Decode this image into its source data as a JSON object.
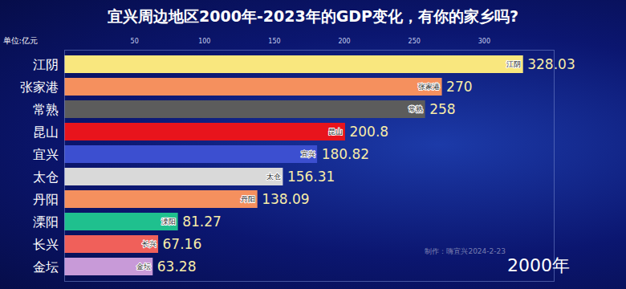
{
  "chart_data": {
    "type": "bar",
    "orientation": "horizontal",
    "title": "宜兴周边地区2000年-2023年的GDP变化，有你的家乡吗?",
    "x_label": "单位:亿元",
    "categories": [
      "江阴",
      "张家港",
      "常熟",
      "昆山",
      "宜兴",
      "太仓",
      "丹阳",
      "溧阳",
      "长兴",
      "金坛"
    ],
    "values": [
      328.03,
      270,
      258,
      200.8,
      180.82,
      156.31,
      138.09,
      81.27,
      67.16,
      63.28
    ],
    "colors": [
      "#f9e77e",
      "#f5905e",
      "#5c5c5c",
      "#e8141c",
      "#3c4fd0",
      "#d9d9d9",
      "#f5905e",
      "#1fc08e",
      "#f0605a",
      "#c89ad8"
    ],
    "xlim": [
      0,
      350
    ],
    "xticks": [
      50,
      100,
      150,
      200,
      250,
      300
    ],
    "grid": false,
    "data_labels": true,
    "annotations": [
      "2000年",
      "制作：嗨宜兴2024-2-23"
    ]
  }
}
